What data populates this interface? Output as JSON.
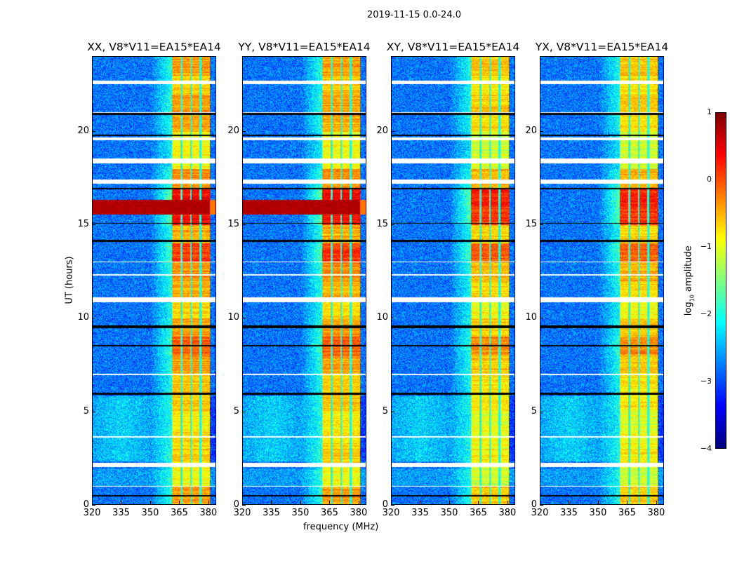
{
  "chart_data": {
    "type": "heatmap",
    "title": "2019-11-15 0.0-24.0",
    "xlabel": "frequency (MHz)",
    "ylabel": "UT (hours)",
    "xlim": [
      320,
      384
    ],
    "ylim": [
      0,
      24
    ],
    "xticks": [
      "320",
      "335",
      "350",
      "365",
      "380"
    ],
    "xtick_values": [
      320,
      335,
      350,
      365,
      380
    ],
    "yticks": [
      "0",
      "5",
      "10",
      "15",
      "20"
    ],
    "ytick_values": [
      0,
      5,
      10,
      15,
      20
    ],
    "colorbar": {
      "label": "log10 amplitude",
      "label_main": "log",
      "label_sub": "10",
      "label_tail": " amplitude",
      "range": [
        -4,
        1
      ],
      "ticks": [
        "1",
        "0",
        "−1",
        "−2",
        "−3",
        "−4"
      ],
      "tick_values": [
        1,
        0,
        -1,
        -2,
        -3,
        -4
      ],
      "colormap": "jet"
    },
    "panels": [
      {
        "title": "XX, V8*V11=EA15*EA14",
        "strong_broadband_rfi": true
      },
      {
        "title": "YY, V8*V11=EA15*EA14",
        "strong_broadband_rfi": true
      },
      {
        "title": "XY, V8*V11=EA15*EA14",
        "strong_broadband_rfi": false
      },
      {
        "title": "YX, V8*V11=EA15*EA14",
        "strong_broadband_rfi": false
      }
    ],
    "background_level": -2.8,
    "rfi_subbands_mhz": [
      [
        361,
        366
      ],
      [
        366,
        371
      ],
      [
        371,
        376
      ],
      [
        376,
        381
      ]
    ],
    "rfi_band_level_by_hour": [
      -0.4,
      -0.9,
      -0.6,
      -0.7,
      -0.8,
      -0.6,
      -0.6,
      -0.4,
      -0.1,
      -0.4,
      -0.7,
      -0.5,
      -0.3,
      0.1,
      -0.5,
      0.3,
      0.4,
      -0.3,
      -0.9,
      -0.9,
      -0.5,
      -0.4,
      -0.6,
      -0.4
    ],
    "flagged_ut_intervals": [
      [
        2.0,
        2.25
      ],
      [
        10.85,
        11.1
      ],
      [
        17.2,
        17.45
      ],
      [
        18.3,
        18.55
      ],
      [
        22.55,
        22.75
      ],
      [
        19.55,
        19.7
      ],
      [
        0.95,
        1.0
      ],
      [
        3.6,
        3.65
      ],
      [
        6.95,
        7.0
      ],
      [
        12.3,
        12.35
      ],
      [
        13.0,
        13.05
      ],
      [
        21.0,
        21.05
      ]
    ],
    "dropout_ut_intervals": [
      [
        0.45,
        0.5
      ],
      [
        5.9,
        6.0
      ],
      [
        8.5,
        8.55
      ],
      [
        9.45,
        9.6
      ],
      [
        14.1,
        14.2
      ],
      [
        15.05,
        15.1
      ],
      [
        16.9,
        17.0
      ],
      [
        19.75,
        19.85
      ],
      [
        20.9,
        21.0
      ]
    ],
    "broadband_rfi_ut": [
      15.55,
      16.35
    ]
  }
}
